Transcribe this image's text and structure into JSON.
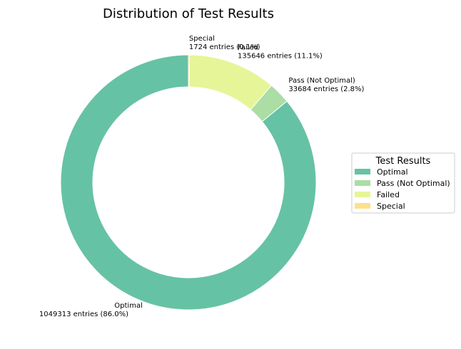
{
  "chart_data": {
    "type": "pie",
    "title": "Distribution of Test Results",
    "slices": [
      {
        "label": "Optimal",
        "count": 1049313,
        "percent": 86.0,
        "color": "#66c2a5",
        "annotation_line1": "Optimal",
        "annotation_line2": "1049313 entries (86.0%)"
      },
      {
        "label": "Pass (Not Optimal)",
        "count": 33684,
        "percent": 2.8,
        "color": "#abdda4",
        "annotation_line1": "Pass (Not Optimal)",
        "annotation_line2": "33684 entries (2.8%)"
      },
      {
        "label": "Failed",
        "count": 135646,
        "percent": 11.1,
        "color": "#e6f598",
        "annotation_line1": "Failed",
        "annotation_line2": "135646 entries (11.1%)"
      },
      {
        "label": "Special",
        "count": 1724,
        "percent": 0.1,
        "color": "#fee08b",
        "annotation_line1": "Special",
        "annotation_line2": "1724 entries (0.1%)"
      }
    ],
    "start_angle_deg": 90,
    "direction": "counterclockwise",
    "donut": true,
    "legend": {
      "title": "Test Results",
      "position": "right"
    }
  }
}
